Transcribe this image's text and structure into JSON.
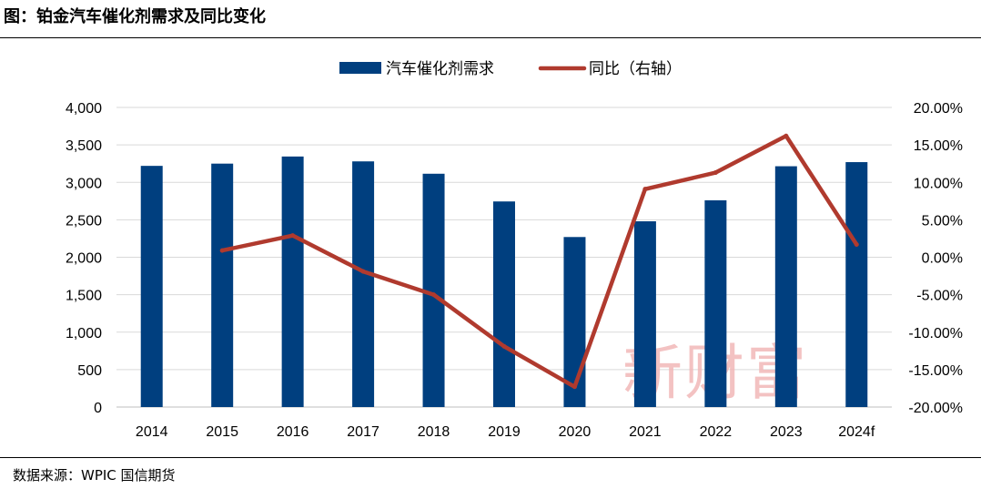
{
  "figure_title": "图：铂金汽车催化剂需求及同比变化",
  "source_note": "数据来源：WPIC  国信期货",
  "watermark": "新财富",
  "chart_data": {
    "type": "bar",
    "categories": [
      "2014",
      "2015",
      "2016",
      "2017",
      "2018",
      "2019",
      "2020",
      "2021",
      "2022",
      "2023",
      "2024f"
    ],
    "series": [
      {
        "name": "汽车催化剂需求",
        "type": "bar",
        "axis": "left",
        "color": "#003f7f",
        "values": [
          3220,
          3250,
          3345,
          3280,
          3115,
          2745,
          2270,
          2480,
          2760,
          3215,
          3270
        ]
      },
      {
        "name": "同比（右轴）",
        "type": "line",
        "axis": "right",
        "color": "#b03a2e",
        "values": [
          null,
          0.009,
          0.029,
          -0.019,
          -0.05,
          -0.119,
          -0.173,
          0.091,
          0.113,
          0.162,
          0.017
        ]
      }
    ],
    "left_axis": {
      "ylim": [
        0,
        4000
      ],
      "ticks": [
        0,
        500,
        1000,
        1500,
        2000,
        2500,
        3000,
        3500,
        4000
      ],
      "tick_labels": [
        "0",
        "500",
        "1,000",
        "1,500",
        "2,000",
        "2,500",
        "3,000",
        "3,500",
        "4,000"
      ]
    },
    "right_axis": {
      "ylim": [
        -0.2,
        0.2
      ],
      "ticks": [
        -0.2,
        -0.15,
        -0.1,
        -0.05,
        0.0,
        0.05,
        0.1,
        0.15,
        0.2
      ],
      "tick_labels": [
        "-20.00%",
        "-15.00%",
        "-10.00%",
        "-5.00%",
        "0.00%",
        "5.00%",
        "10.00%",
        "15.00%",
        "20.00%"
      ]
    },
    "grid": true,
    "legend": "top-center"
  }
}
